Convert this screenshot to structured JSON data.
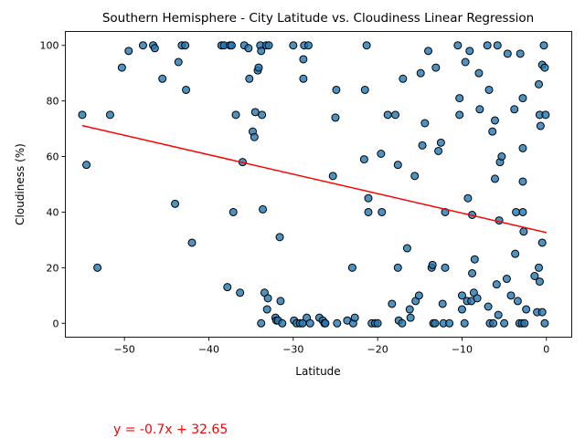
{
  "chart_data": {
    "type": "scatter",
    "title": "Southern Hemisphere - City Latitude vs. Cloudiness Linear Regression",
    "xlabel": "Latitude",
    "ylabel": "Cloudiness (%)",
    "xlim": [
      -57,
      3
    ],
    "ylim": [
      -5,
      105
    ],
    "xticks": [
      -50,
      -40,
      -30,
      -20,
      -10,
      0
    ],
    "yticks": [
      0,
      20,
      40,
      60,
      80,
      100
    ],
    "grid": false,
    "point_color": "#1f77b4",
    "point_edge_color": "#000000",
    "line_color": "#ff0000",
    "regression": {
      "slope": -0.7,
      "intercept": 32.65,
      "x_range": [
        -55,
        0
      ]
    },
    "equation": "y = -0.7x + 32.65",
    "equation_color": "#ff0000",
    "points": [
      [
        -55,
        75
      ],
      [
        -54.5,
        57
      ],
      [
        -53.2,
        20
      ],
      [
        -51.7,
        75
      ],
      [
        -50.3,
        92
      ],
      [
        -49.5,
        98
      ],
      [
        -47.8,
        100
      ],
      [
        -46.6,
        100
      ],
      [
        -46.4,
        99
      ],
      [
        -45.5,
        88
      ],
      [
        -44,
        43
      ],
      [
        -43.6,
        94
      ],
      [
        -43.2,
        100
      ],
      [
        -42.8,
        100
      ],
      [
        -42.7,
        84
      ],
      [
        -42,
        29
      ],
      [
        -38.5,
        100
      ],
      [
        -38.2,
        100
      ],
      [
        -37.8,
        13
      ],
      [
        -37.5,
        100
      ],
      [
        -37.3,
        100
      ],
      [
        -37.1,
        40
      ],
      [
        -36.8,
        75
      ],
      [
        -36.3,
        11
      ],
      [
        -36,
        58
      ],
      [
        -35.8,
        100
      ],
      [
        -35.3,
        99
      ],
      [
        -35.2,
        88
      ],
      [
        -34.8,
        69
      ],
      [
        -34.6,
        67
      ],
      [
        -34.5,
        76
      ],
      [
        -34.2,
        91
      ],
      [
        -34.1,
        92
      ],
      [
        -33.9,
        100
      ],
      [
        -33.8,
        98
      ],
      [
        -33.8,
        0
      ],
      [
        -33.7,
        75
      ],
      [
        -33.6,
        41
      ],
      [
        -33.4,
        11
      ],
      [
        -33.2,
        100
      ],
      [
        -33.1,
        5
      ],
      [
        -33,
        9
      ],
      [
        -32.9,
        100
      ],
      [
        -32.1,
        2
      ],
      [
        -32,
        1
      ],
      [
        -31.8,
        1
      ],
      [
        -31.6,
        31
      ],
      [
        -31.5,
        8
      ],
      [
        -31.3,
        0
      ],
      [
        -30,
        100
      ],
      [
        -29.9,
        1
      ],
      [
        -29.6,
        0
      ],
      [
        -29.2,
        0
      ],
      [
        -28.9,
        0
      ],
      [
        -28.8,
        95
      ],
      [
        -28.8,
        88
      ],
      [
        -28.7,
        100
      ],
      [
        -28.4,
        2
      ],
      [
        -28.2,
        100
      ],
      [
        -28,
        0
      ],
      [
        -26.9,
        2
      ],
      [
        -26.5,
        1
      ],
      [
        -26.3,
        0
      ],
      [
        -26.2,
        0
      ],
      [
        -25.3,
        53
      ],
      [
        -25,
        74
      ],
      [
        -24.9,
        84
      ],
      [
        -24.8,
        0
      ],
      [
        -23.6,
        1
      ],
      [
        -23,
        20
      ],
      [
        -22.9,
        0
      ],
      [
        -22.7,
        2
      ],
      [
        -21.6,
        59
      ],
      [
        -21.5,
        84
      ],
      [
        -21.3,
        100
      ],
      [
        -21.1,
        45
      ],
      [
        -21.1,
        40
      ],
      [
        -20.7,
        0
      ],
      [
        -20.3,
        0
      ],
      [
        -20,
        0
      ],
      [
        -19.6,
        61
      ],
      [
        -19.5,
        40
      ],
      [
        -18.8,
        75
      ],
      [
        -18.3,
        7
      ],
      [
        -17.9,
        75
      ],
      [
        -17.6,
        57
      ],
      [
        -17.6,
        20
      ],
      [
        -17.5,
        1
      ],
      [
        -17.1,
        0
      ],
      [
        -17,
        88
      ],
      [
        -16.5,
        27
      ],
      [
        -16.2,
        5
      ],
      [
        -16.1,
        2
      ],
      [
        -15.6,
        53
      ],
      [
        -15.5,
        8
      ],
      [
        -15.1,
        10
      ],
      [
        -14.9,
        90
      ],
      [
        -14.7,
        64
      ],
      [
        -14.4,
        72
      ],
      [
        -14,
        98
      ],
      [
        -13.6,
        20
      ],
      [
        -13.5,
        21
      ],
      [
        -13.4,
        0
      ],
      [
        -13.2,
        0
      ],
      [
        -13.1,
        92
      ],
      [
        -12.8,
        62
      ],
      [
        -12.5,
        65
      ],
      [
        -12.3,
        7
      ],
      [
        -12.2,
        0
      ],
      [
        -12,
        20
      ],
      [
        -12,
        40
      ],
      [
        -11.5,
        0
      ],
      [
        -10.5,
        100
      ],
      [
        -10.3,
        81
      ],
      [
        -10.3,
        75
      ],
      [
        -10,
        5
      ],
      [
        -10,
        10
      ],
      [
        -9.7,
        0
      ],
      [
        -9.6,
        94
      ],
      [
        -9.4,
        8
      ],
      [
        -9.3,
        45
      ],
      [
        -9.1,
        98
      ],
      [
        -8.9,
        8
      ],
      [
        -8.8,
        18
      ],
      [
        -8.8,
        39
      ],
      [
        -8.6,
        11
      ],
      [
        -8.5,
        23
      ],
      [
        -8.2,
        9
      ],
      [
        -8,
        90
      ],
      [
        -7.9,
        77
      ],
      [
        -7,
        100
      ],
      [
        -6.9,
        6
      ],
      [
        -6.8,
        84
      ],
      [
        -6.7,
        0
      ],
      [
        -6.4,
        69
      ],
      [
        -6.3,
        0
      ],
      [
        -6.1,
        73
      ],
      [
        -6.1,
        52
      ],
      [
        -5.9,
        14
      ],
      [
        -5.8,
        100
      ],
      [
        -5.7,
        3
      ],
      [
        -5.6,
        37
      ],
      [
        -5.5,
        58
      ],
      [
        -5.3,
        60
      ],
      [
        -5,
        0
      ],
      [
        -4.7,
        16
      ],
      [
        -4.6,
        97
      ],
      [
        -4.2,
        10
      ],
      [
        -3.8,
        77
      ],
      [
        -3.7,
        25
      ],
      [
        -3.6,
        40
      ],
      [
        -3.4,
        8
      ],
      [
        -3.2,
        0
      ],
      [
        -3.1,
        97
      ],
      [
        -2.9,
        0
      ],
      [
        -2.8,
        81
      ],
      [
        -2.8,
        63
      ],
      [
        -2.8,
        51
      ],
      [
        -2.8,
        40
      ],
      [
        -2.7,
        33
      ],
      [
        -2.6,
        0
      ],
      [
        -2.4,
        5
      ],
      [
        -1.4,
        17
      ],
      [
        -1.1,
        4
      ],
      [
        -0.9,
        20
      ],
      [
        -0.9,
        86
      ],
      [
        -0.8,
        15
      ],
      [
        -0.8,
        75
      ],
      [
        -0.7,
        71
      ],
      [
        -0.5,
        4
      ],
      [
        -0.5,
        93
      ],
      [
        -0.5,
        29
      ],
      [
        -0.3,
        100
      ],
      [
        -0.2,
        92
      ],
      [
        -0.2,
        0
      ],
      [
        -0.1,
        75
      ]
    ]
  }
}
